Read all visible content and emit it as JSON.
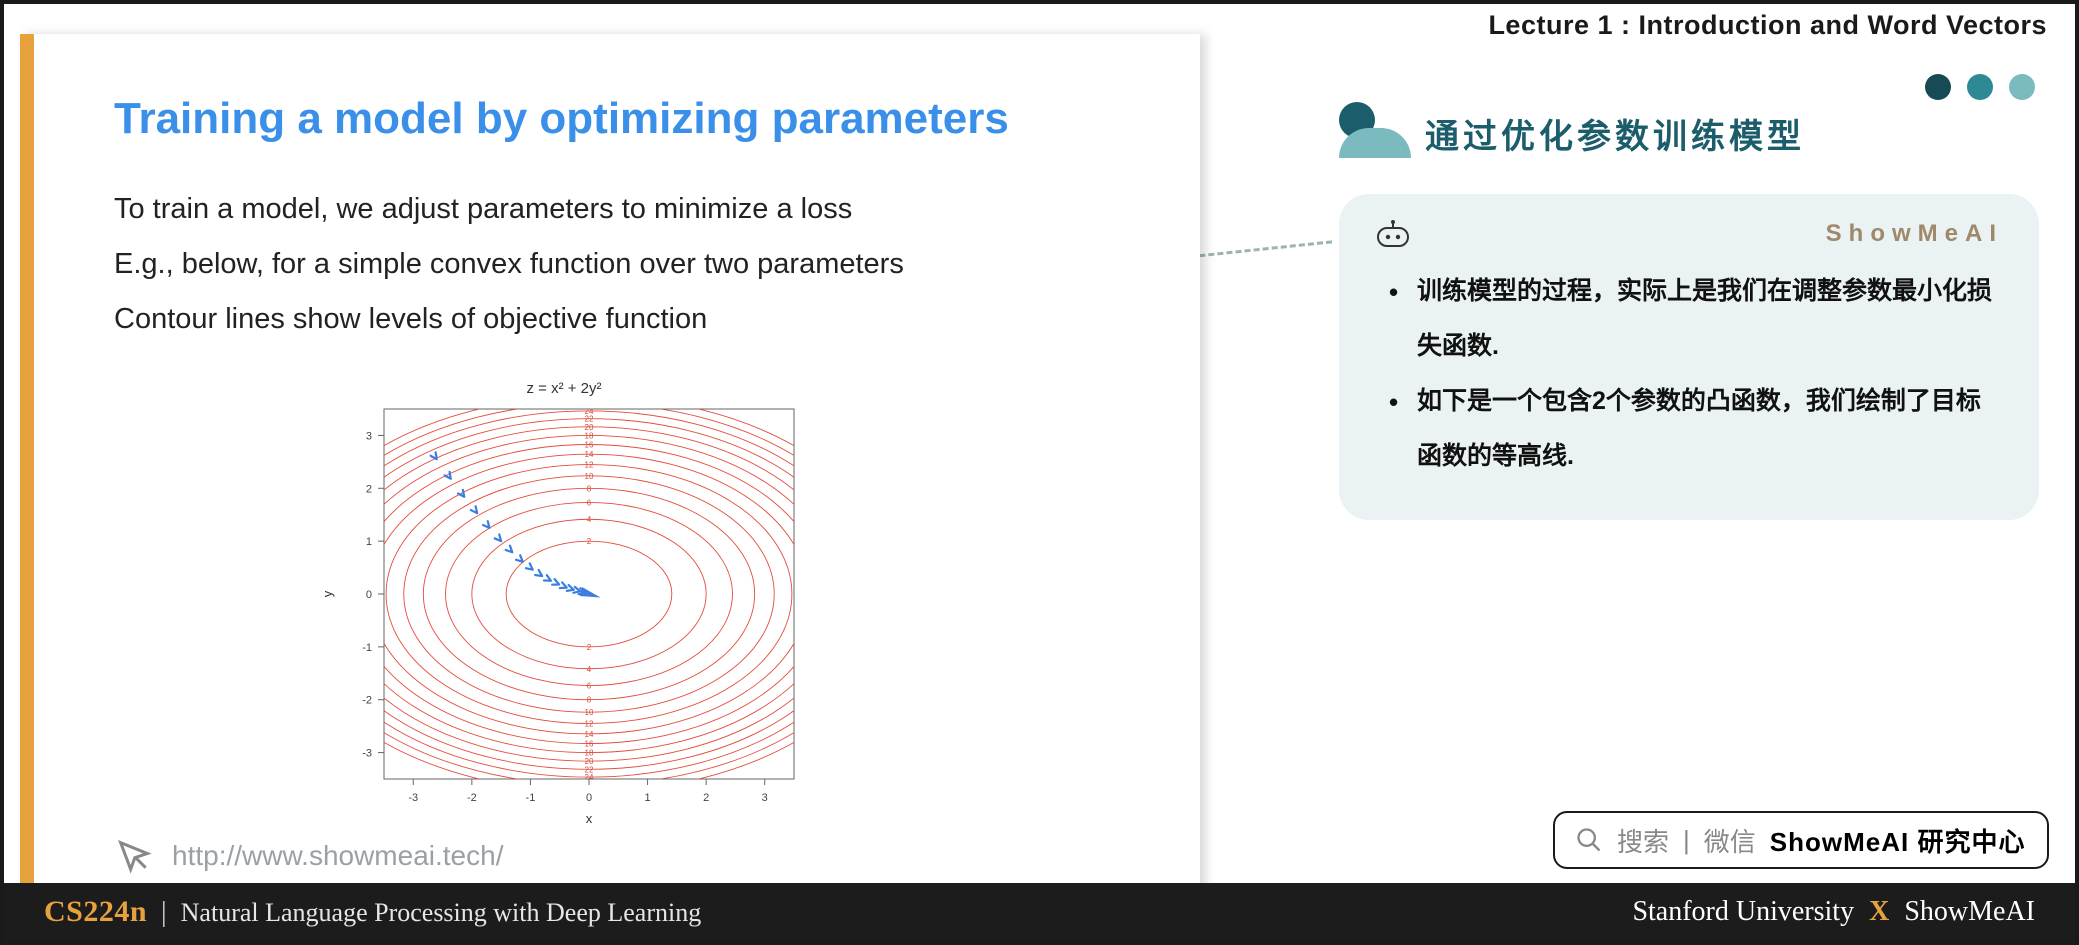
{
  "header": {
    "lecture_label": "Lecture 1 :  Introduction and Word Vectors"
  },
  "dots": {
    "colors": [
      "#164a54",
      "#2d8a95",
      "#7bbabf"
    ]
  },
  "slide": {
    "accent_color": "#e8a23d",
    "title": "Training a model by optimizing parameters",
    "title_color": "#3a8fe8",
    "body": [
      "To train a model, we adjust parameters to minimize a loss",
      "E.g., below, for a simple convex function over two parameters",
      "Contour lines show levels of objective function"
    ],
    "footer_url": "http://www.showmeai.tech/"
  },
  "highlight": {
    "background": "#e6eef0"
  },
  "connector": {
    "color": "#9bb3b3"
  },
  "chart": {
    "title": "z = x² + 2y²",
    "xlabel": "x",
    "ylabel": "y",
    "xlim": [
      -3.5,
      3.5
    ],
    "ylim": [
      -3.5,
      3.5
    ],
    "xticks": [
      -3,
      -2,
      -1,
      0,
      1,
      2,
      3
    ],
    "yticks": [
      -3,
      -2,
      -1,
      0,
      1,
      2,
      3
    ],
    "background": "#ffffff",
    "axis_color": "#666666",
    "tick_fontsize": 11,
    "contour_levels": [
      2,
      4,
      6,
      8,
      10,
      12,
      14,
      16,
      18,
      20,
      22,
      24,
      26,
      28
    ],
    "contour_color": "#e44c3c",
    "contour_linewidth": 0.9,
    "contour_label_fontsize": 8,
    "contour_label_color": "#d84a3a",
    "descent_color": "#3a7fe0",
    "descent_path": [
      [
        -2.85,
        2.95
      ],
      [
        -2.6,
        2.55
      ],
      [
        -2.36,
        2.18
      ],
      [
        -2.13,
        1.84
      ],
      [
        -1.91,
        1.53
      ],
      [
        -1.7,
        1.25
      ],
      [
        -1.5,
        1.0
      ],
      [
        -1.31,
        0.79
      ],
      [
        -1.13,
        0.61
      ],
      [
        -0.96,
        0.46
      ],
      [
        -0.8,
        0.34
      ],
      [
        -0.65,
        0.25
      ],
      [
        -0.51,
        0.18
      ],
      [
        -0.38,
        0.12
      ],
      [
        -0.26,
        0.08
      ],
      [
        -0.15,
        0.05
      ],
      [
        -0.06,
        0.02
      ],
      [
        0.0,
        0.0
      ]
    ],
    "descent_marker": ">",
    "descent_marker_size": 7
  },
  "cn_title": {
    "text": "通过优化参数训练模型",
    "color": "#1b5d6b",
    "decor_dark": "#1b5d6b",
    "decor_light": "#7bbabf"
  },
  "info_card": {
    "background": "#eaf2f4",
    "brand": "ShowMeAI",
    "brand_color": "#9e8a6a",
    "bullets": [
      "训练模型的过程，实际上是我们在调整参数最小化损失函数.",
      "如下是一个包含2个参数的凸函数，我们绘制了目标函数的等高线."
    ]
  },
  "search": {
    "gray1": "搜索",
    "gray2": "微信",
    "bold": "ShowMeAI 研究中心"
  },
  "bottom": {
    "course_code": "CS224n",
    "course_title": "Natural Language Processing with Deep Learning",
    "left_source": "Stanford University",
    "right_source": "ShowMeAI",
    "background": "#1c1c1c",
    "accent": "#e8a23d"
  }
}
